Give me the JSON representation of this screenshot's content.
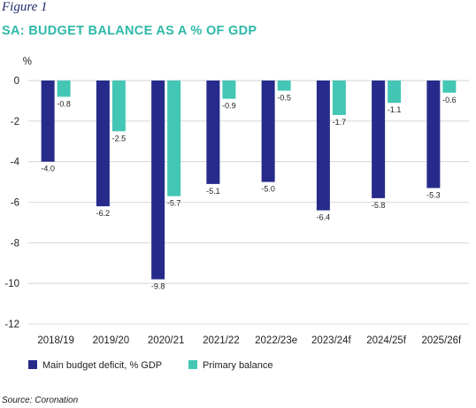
{
  "figure_label": "Figure 1",
  "source": "Source: Coronation",
  "colors": {
    "deficit": "#262b8b",
    "primary": "#43c7b4",
    "grid": "#d0d0d0",
    "title": "#2fb9a8"
  },
  "chart_data": {
    "type": "bar",
    "title": "SA: BUDGET BALANCE AS A % OF GDP",
    "ylabel": "%",
    "ylim": [
      -12,
      0
    ],
    "yticks": [
      0,
      -2,
      -4,
      -6,
      -8,
      -10,
      -12
    ],
    "categories": [
      "2018/19",
      "2019/20",
      "2020/21",
      "2021/22",
      "2022/23e",
      "2023/24f",
      "2024/25f",
      "2025/26f"
    ],
    "series": [
      {
        "name": "Main budget deficit, % GDP",
        "values": [
          -4.0,
          -6.2,
          -9.8,
          -5.1,
          -5.0,
          -6.4,
          -5.8,
          -5.3
        ]
      },
      {
        "name": "Primary balance",
        "values": [
          -0.8,
          -2.5,
          -5.7,
          -0.9,
          -0.5,
          -1.7,
          -1.1,
          -0.6
        ]
      }
    ],
    "grid": true,
    "legend_position": "bottom-left"
  }
}
